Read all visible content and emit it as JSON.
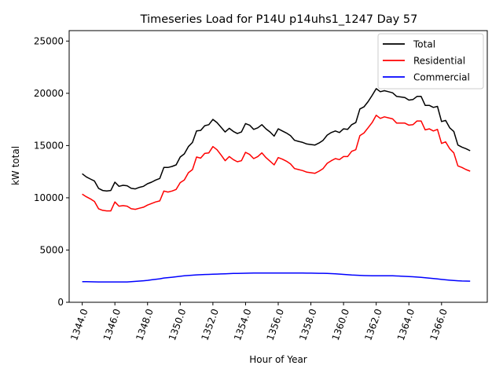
{
  "chart_data": {
    "type": "line",
    "title": "Timeseries Load for P14U p14uhs1_1247  Day 57",
    "xlabel": "Hour of Year",
    "ylabel": "kW total",
    "xlim": [
      1343.2,
      1368.8
    ],
    "ylim": [
      0,
      26000
    ],
    "xticks": [
      1344,
      1346,
      1348,
      1350,
      1352,
      1354,
      1356,
      1358,
      1360,
      1362,
      1364,
      1366
    ],
    "xtick_labels": [
      "1344.0",
      "1346.0",
      "1348.0",
      "1350.0",
      "1352.0",
      "1354.0",
      "1356.0",
      "1358.0",
      "1360.0",
      "1362.0",
      "1364.0",
      "1366.0"
    ],
    "yticks": [
      0,
      5000,
      10000,
      15000,
      20000,
      25000
    ],
    "ytick_labels": [
      "0",
      "5000",
      "10000",
      "15000",
      "20000",
      "25000"
    ],
    "grid": false,
    "legend_position": "top-right",
    "x_start": 1344.0,
    "x_step": 0.25,
    "series": [
      {
        "name": "Total",
        "color": "#000000",
        "values": [
          12300,
          12000,
          11800,
          11600,
          10900,
          10700,
          10650,
          10700,
          11500,
          11100,
          11200,
          11150,
          10900,
          10850,
          11000,
          11100,
          11350,
          11500,
          11700,
          11850,
          12900,
          12900,
          13000,
          13150,
          13900,
          14200,
          14900,
          15300,
          16400,
          16450,
          16900,
          17000,
          17500,
          17200,
          16750,
          16300,
          16650,
          16350,
          16150,
          16300,
          17100,
          16950,
          16550,
          16700,
          17000,
          16600,
          16300,
          15900,
          16600,
          16400,
          16200,
          15950,
          15500,
          15400,
          15300,
          15150,
          15100,
          15050,
          15250,
          15500,
          16000,
          16250,
          16400,
          16250,
          16600,
          16550,
          17000,
          17200,
          18500,
          18700,
          19200,
          19800,
          20450,
          20150,
          20250,
          20150,
          20050,
          19700,
          19650,
          19600,
          19350,
          19400,
          19700,
          19700,
          18850,
          18850,
          18650,
          18750,
          17300,
          17400,
          16700,
          16350,
          15050,
          14850,
          14700,
          14500
        ]
      },
      {
        "name": "Residential",
        "color": "#ff0000",
        "values": [
          10350,
          10100,
          9900,
          9650,
          8950,
          8800,
          8750,
          8750,
          9600,
          9200,
          9250,
          9200,
          8950,
          8900,
          9000,
          9100,
          9300,
          9450,
          9600,
          9700,
          10650,
          10550,
          10650,
          10800,
          11450,
          11700,
          12400,
          12700,
          13900,
          13800,
          14250,
          14300,
          14900,
          14600,
          14100,
          13550,
          13950,
          13650,
          13450,
          13550,
          14350,
          14150,
          13750,
          13950,
          14300,
          13850,
          13500,
          13150,
          13850,
          13700,
          13500,
          13250,
          12800,
          12700,
          12600,
          12450,
          12400,
          12350,
          12550,
          12800,
          13300,
          13550,
          13750,
          13650,
          13950,
          13950,
          14450,
          14600,
          15950,
          16200,
          16700,
          17200,
          17900,
          17600,
          17750,
          17650,
          17550,
          17150,
          17150,
          17150,
          16950,
          17000,
          17350,
          17350,
          16500,
          16600,
          16400,
          16550,
          15200,
          15350,
          14700,
          14300,
          13050,
          12900,
          12700,
          12550
        ]
      },
      {
        "name": "Commercial",
        "color": "#0000ff",
        "values": [
          1980,
          1970,
          1960,
          1955,
          1950,
          1945,
          1945,
          1950,
          1950,
          1945,
          1950,
          1950,
          1975,
          2000,
          2030,
          2060,
          2100,
          2150,
          2200,
          2250,
          2320,
          2360,
          2400,
          2440,
          2490,
          2530,
          2560,
          2590,
          2620,
          2640,
          2660,
          2670,
          2685,
          2700,
          2715,
          2725,
          2740,
          2755,
          2765,
          2775,
          2780,
          2790,
          2795,
          2800,
          2800,
          2800,
          2800,
          2800,
          2800,
          2800,
          2800,
          2800,
          2800,
          2800,
          2795,
          2790,
          2785,
          2780,
          2775,
          2770,
          2760,
          2740,
          2720,
          2700,
          2670,
          2640,
          2610,
          2590,
          2570,
          2555,
          2545,
          2540,
          2540,
          2540,
          2540,
          2540,
          2535,
          2520,
          2500,
          2480,
          2460,
          2440,
          2410,
          2380,
          2350,
          2310,
          2270,
          2230,
          2190,
          2150,
          2110,
          2080,
          2060,
          2040,
          2030,
          2020
        ]
      }
    ]
  }
}
